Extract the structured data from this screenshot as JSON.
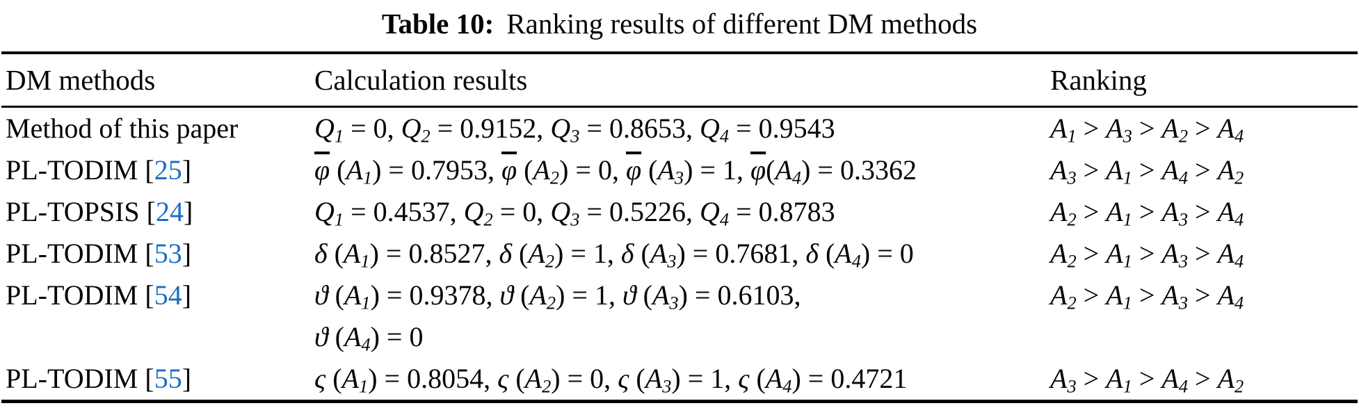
{
  "caption": {
    "label": "Table 10:",
    "text": "Ranking results of different DM methods"
  },
  "colors": {
    "citation_link": "#1a6fc4",
    "text": "#050505",
    "background": "#ffffff"
  },
  "table": {
    "headers": [
      "DM methods",
      "Calculation results",
      "Ranking"
    ],
    "rows": [
      {
        "method_pre": "Method of this paper",
        "ref": "",
        "method_post": "",
        "calc": "Q₁ = 0, Q₂ = 0.9152, Q₃ = 0.8653, Q₄ = 0.9543",
        "ranking": "A₁ > A₃ > A₂ > A₄"
      },
      {
        "method_pre": "PL-TODIM [",
        "ref": "25",
        "method_post": "]",
        "calc": "φ̄ (A₁) = 0.7953, φ̄ (A₂) = 0, φ̄ (A₃) = 1, φ̄(A₄) = 0.3362",
        "ranking": "A₃ > A₁ > A₄ > A₂"
      },
      {
        "method_pre": "PL-TOPSIS [",
        "ref": "24",
        "method_post": "]",
        "calc": "Q₁ = 0.4537, Q₂ = 0, Q₃ = 0.5226, Q₄ = 0.8783",
        "ranking": "A₂ > A₁ > A₃ > A₄"
      },
      {
        "method_pre": "PL-TODIM [",
        "ref": "53",
        "method_post": "]",
        "calc": "δ (A₁) = 0.8527, δ (A₂) = 1, δ (A₃) = 0.7681, δ (A₄) = 0",
        "ranking": "A₂ > A₁ > A₃ > A₄"
      },
      {
        "method_pre": "PL-TODIM [",
        "ref": "54",
        "method_post": "]",
        "calc": "ϑ (A₁) = 0.9378, ϑ (A₂) = 1, ϑ (A₃) = 0.6103,\nϑ (A₄) = 0",
        "ranking": "A₂ > A₁ > A₃ > A₄"
      },
      {
        "method_pre": "PL-TODIM [",
        "ref": "55",
        "method_post": "]",
        "calc": "ς (A₁) = 0.8054, ς (A₂) = 0, ς (A₃) = 1, ς (A₄) = 0.4721",
        "ranking": "A₃ > A₁ > A₄ > A₂"
      }
    ]
  }
}
